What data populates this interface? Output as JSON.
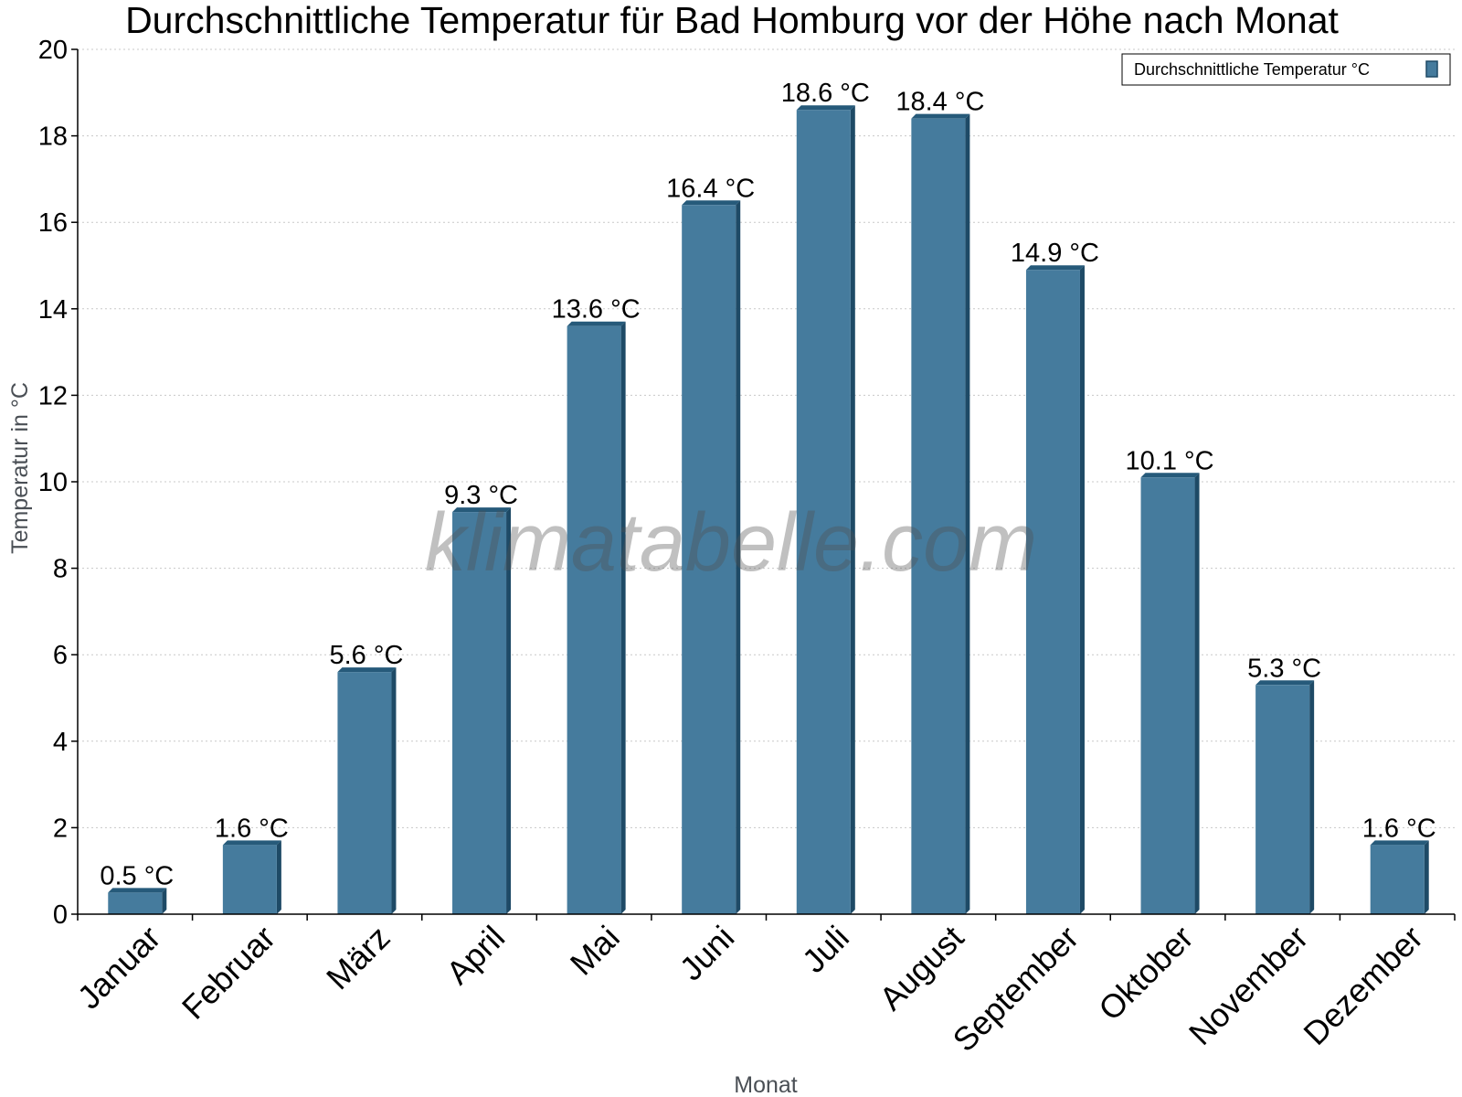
{
  "chart_data": {
    "type": "bar",
    "title": "Durchschnittliche Temperatur für Bad Homburg vor der Höhe nach Monat",
    "xlabel": "Monat",
    "ylabel": "Temperatur in °C",
    "categories": [
      "Januar",
      "Februar",
      "März",
      "April",
      "Mai",
      "Juni",
      "Juli",
      "August",
      "September",
      "Oktober",
      "November",
      "Dezember"
    ],
    "series": [
      {
        "name": "Durchschnittliche Temperatur °C",
        "values": [
          0.5,
          1.6,
          5.6,
          9.3,
          13.6,
          16.4,
          18.6,
          18.4,
          14.9,
          10.1,
          5.3,
          1.6
        ],
        "labels": [
          "0.5 °C",
          "1.6 °C",
          "5.6 °C",
          "9.3 °C",
          "13.6 °C",
          "16.4 °C",
          "18.6 °C",
          "18.4 °C",
          "14.9 °C",
          "10.1 °C",
          "5.3 °C",
          "1.6 °C"
        ],
        "color": "#457b9d"
      }
    ],
    "ylim": [
      0,
      20
    ],
    "yticks": [
      "0",
      "2",
      "4",
      "6",
      "8",
      "10",
      "12",
      "14",
      "16",
      "18",
      "20"
    ],
    "grid": true,
    "legend_position": "top-right",
    "watermark": "klimatabelle.com"
  },
  "colors": {
    "bar_face": "#457b9d",
    "bar_side": "#1e4a66",
    "bar_top": "#265a7a",
    "grid": "#c8c8c8",
    "axis": "#000000"
  }
}
